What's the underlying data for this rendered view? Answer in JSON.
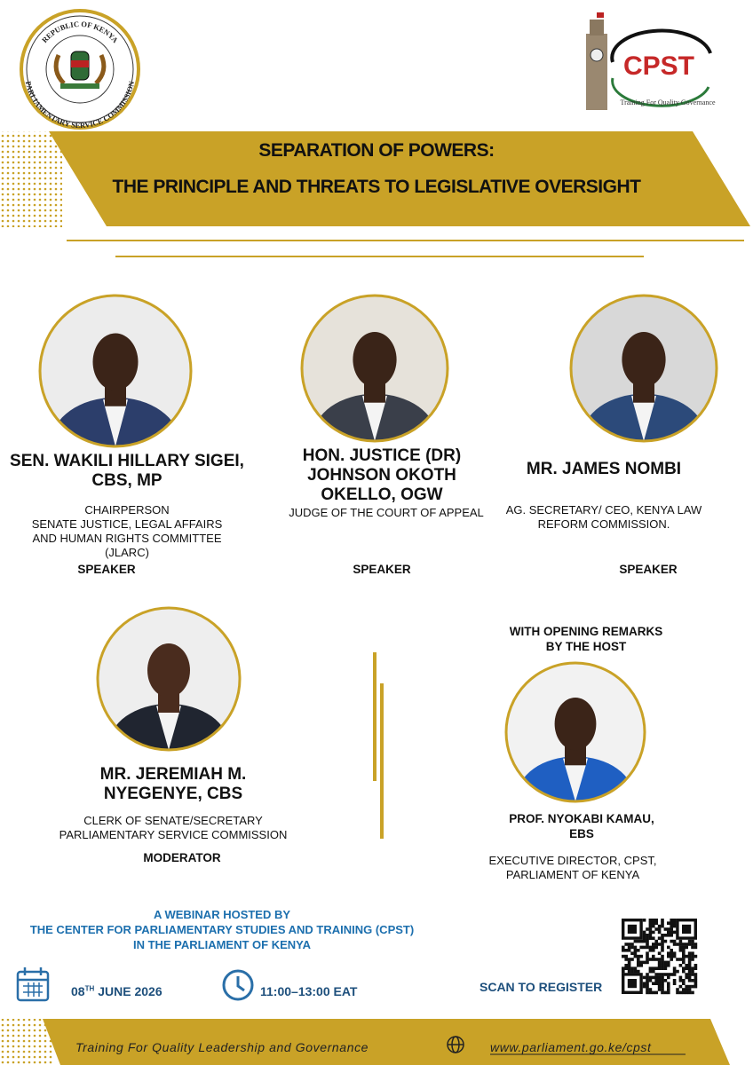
{
  "logos": {
    "left": {
      "top_text": "REPUBLIC OF KENYA",
      "bottom_text": "PARLIAMENTARY SERVICE COMMISSION"
    },
    "right": {
      "name": "CPST",
      "tagline": "Training For Quality Governance"
    }
  },
  "banner": {
    "title_line1": "SEPARATION OF POWERS:",
    "title_line2": "THE PRINCIPLE AND THREATS TO LEGISLATIVE OVERSIGHT"
  },
  "speakers": [
    {
      "name": [
        "SEN. WAKILI HILLARY SIGEI,",
        "CBS, MP"
      ],
      "position": [
        "CHAIRPERSON",
        "SENATE JUSTICE, LEGAL AFFAIRS",
        "AND HUMAN RIGHTS COMMITTEE",
        "(JLARC)"
      ],
      "role": "SPEAKER"
    },
    {
      "name": [
        "HON. JUSTICE (DR)",
        "JOHNSON OKOTH",
        "OKELLO, OGW"
      ],
      "position": [
        "JUDGE OF THE COURT OF APPEAL"
      ],
      "role": "SPEAKER"
    },
    {
      "name": [
        "MR. JAMES NOMBI"
      ],
      "position": [
        "AG. SECRETARY/ CEO, KENYA LAW",
        "REFORM COMMISSION."
      ],
      "role": "SPEAKER"
    }
  ],
  "moderator": {
    "name": [
      "MR. JEREMIAH M.",
      "NYEGENYE, CBS"
    ],
    "position": [
      "CLERK OF SENATE/SECRETARY",
      "PARLIAMENTARY SERVICE COMMISSION"
    ],
    "role": "MODERATOR"
  },
  "host": {
    "intro": [
      "WITH OPENING REMARKS",
      "BY THE HOST"
    ],
    "name": [
      "PROF. NYOKABI KAMAU,",
      "EBS"
    ],
    "position": [
      "EXECUTIVE DIRECTOR, CPST,",
      "PARLIAMENT OF KENYA"
    ]
  },
  "webinar": {
    "lines": [
      "A WEBINAR HOSTED BY",
      "THE CENTER FOR PARLIAMENTARY STUDIES AND TRAINING (CPST)",
      "IN THE PARLIAMENT OF KENYA"
    ]
  },
  "event": {
    "date": {
      "day": "08",
      "suffix": "TH",
      "rest": "JUNE 2026"
    },
    "time": "11:00–13:00 EAT",
    "register": "SCAN TO REGISTER"
  },
  "footer": {
    "tagline": "Training For Quality Leadership and Governance",
    "url": "www.parliament.go.ke/cpst"
  }
}
